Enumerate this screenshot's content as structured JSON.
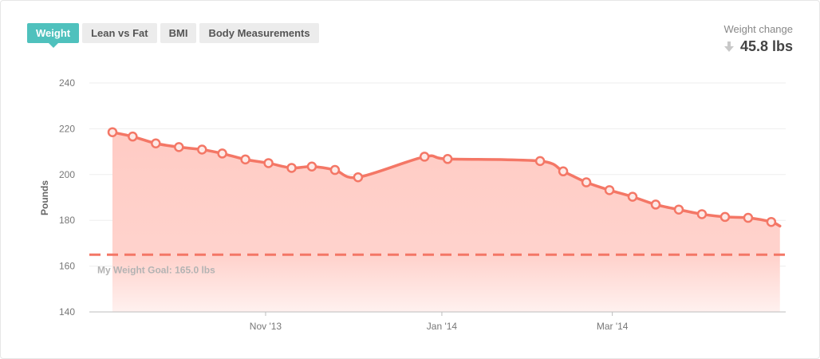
{
  "tabs": [
    {
      "label": "Weight",
      "active": true
    },
    {
      "label": "Lean vs Fat",
      "active": false
    },
    {
      "label": "BMI",
      "active": false
    },
    {
      "label": "Body Measurements",
      "active": false
    }
  ],
  "weight_change": {
    "label": "Weight change",
    "value": "45.8 lbs",
    "direction_icon": "arrow-down-icon"
  },
  "colors": {
    "accent": "#4fc1bd",
    "line": "#f47766",
    "area": "#ffcbc4",
    "goal": "#f47766"
  },
  "chart_data": {
    "type": "area",
    "title": "",
    "xlabel": "",
    "ylabel": "Pounds",
    "ylim": [
      140,
      240
    ],
    "yticks": [
      140,
      160,
      180,
      200,
      220,
      240
    ],
    "xlim": [
      "2013-09-01",
      "2014-04-30"
    ],
    "xticks": [
      {
        "label": "Nov '13",
        "date": "2013-11-01"
      },
      {
        "label": "Jan '14",
        "date": "2014-01-01"
      },
      {
        "label": "Mar '14",
        "date": "2014-03-01"
      }
    ],
    "grid": true,
    "goal": {
      "value": 165,
      "label": "My Weight Goal: 165.0 lbs"
    },
    "series": [
      {
        "points": [
          {
            "x": "2013-09-09",
            "y": 218.5
          },
          {
            "x": "2013-09-16",
            "y": 216.6
          },
          {
            "x": "2013-09-24",
            "y": 213.6
          },
          {
            "x": "2013-10-02",
            "y": 212.0
          },
          {
            "x": "2013-10-10",
            "y": 210.9
          },
          {
            "x": "2013-10-17",
            "y": 209.2
          },
          {
            "x": "2013-10-25",
            "y": 206.6
          },
          {
            "x": "2013-11-02",
            "y": 205.0
          },
          {
            "x": "2013-11-10",
            "y": 202.9
          },
          {
            "x": "2013-11-17",
            "y": 203.5
          },
          {
            "x": "2013-11-25",
            "y": 202.0
          },
          {
            "x": "2013-12-03",
            "y": 198.8
          },
          {
            "x": "2013-12-26",
            "y": 207.8
          },
          {
            "x": "2014-01-03",
            "y": 206.8
          },
          {
            "x": "2014-02-04",
            "y": 205.9
          },
          {
            "x": "2014-02-12",
            "y": 201.4
          },
          {
            "x": "2014-02-20",
            "y": 196.6
          },
          {
            "x": "2014-02-28",
            "y": 193.2
          },
          {
            "x": "2014-03-08",
            "y": 190.3
          },
          {
            "x": "2014-03-16",
            "y": 186.9
          },
          {
            "x": "2014-03-24",
            "y": 184.7
          },
          {
            "x": "2014-04-01",
            "y": 182.7
          },
          {
            "x": "2014-04-09",
            "y": 181.5
          },
          {
            "x": "2014-04-17",
            "y": 181.1
          },
          {
            "x": "2014-04-25",
            "y": 179.3
          }
        ],
        "trailing_point": {
          "x": "2014-04-28",
          "y": 177.5
        }
      }
    ]
  }
}
